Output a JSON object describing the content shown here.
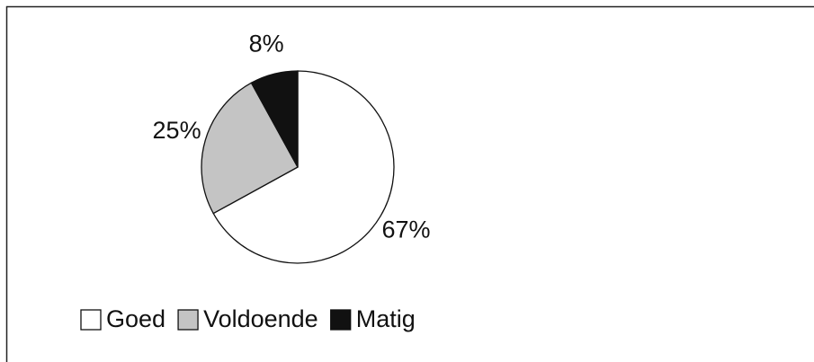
{
  "chart_data": {
    "type": "pie",
    "categories": [
      "Goed",
      "Voldoende",
      "Matig"
    ],
    "values": [
      67,
      25,
      8
    ],
    "value_labels": [
      "67%",
      "25%",
      "8%"
    ],
    "colors": [
      "#ffffff",
      "#c4c4c4",
      "#111111"
    ],
    "legend": "bottom"
  }
}
